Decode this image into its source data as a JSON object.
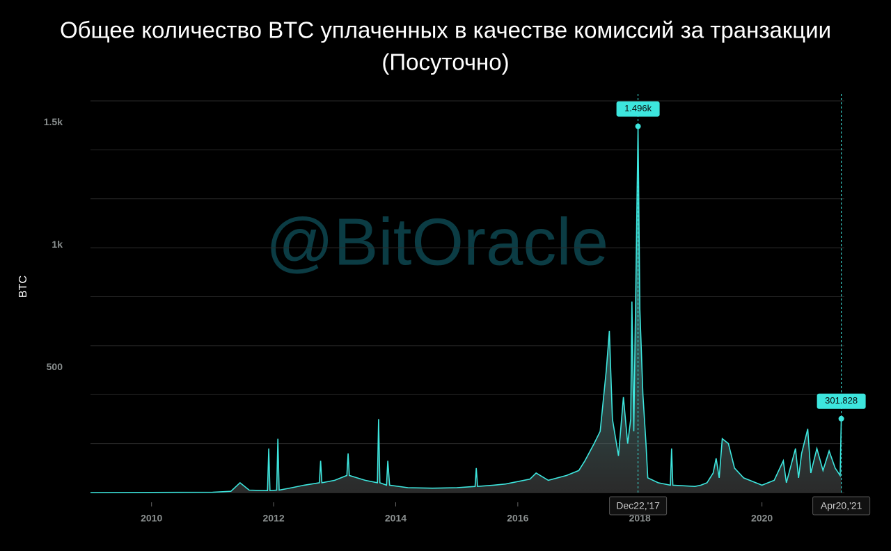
{
  "chart_data": {
    "type": "area",
    "title": "Общее количество BTC уплаченных в качестве комиссий за транзакции",
    "subtitle": "(Посуточно)",
    "watermark": "@BitOracle",
    "y_label": "BTC",
    "color": "#3de6de",
    "x": [
      2009.0,
      2010.0,
      2011.0,
      2011.3,
      2011.45,
      2011.6,
      2011.9,
      2011.92,
      2011.94,
      2012.05,
      2012.07,
      2012.09,
      2012.3,
      2012.5,
      2012.75,
      2012.77,
      2012.79,
      2013.0,
      2013.2,
      2013.22,
      2013.24,
      2013.5,
      2013.7,
      2013.72,
      2013.74,
      2013.85,
      2013.87,
      2013.9,
      2014.2,
      2014.6,
      2015.0,
      2015.3,
      2015.32,
      2015.34,
      2015.6,
      2015.8,
      2016.0,
      2016.2,
      2016.3,
      2016.5,
      2016.8,
      2017.0,
      2017.1,
      2017.25,
      2017.35,
      2017.45,
      2017.5,
      2017.55,
      2017.65,
      2017.73,
      2017.8,
      2017.85,
      2017.87,
      2017.9,
      2017.97,
      2018.0,
      2018.05,
      2018.1,
      2018.13,
      2018.3,
      2018.5,
      2018.52,
      2018.54,
      2018.9,
      2019.0,
      2019.1,
      2019.2,
      2019.25,
      2019.3,
      2019.35,
      2019.45,
      2019.55,
      2019.7,
      2019.9,
      2020.0,
      2020.2,
      2020.35,
      2020.4,
      2020.55,
      2020.6,
      2020.65,
      2020.75,
      2020.8,
      2020.9,
      2021.0,
      2021.1,
      2021.2,
      2021.28,
      2021.3
    ],
    "values": [
      0,
      0.5,
      1,
      5,
      40,
      10,
      8,
      180,
      8,
      10,
      220,
      10,
      20,
      30,
      40,
      130,
      40,
      50,
      70,
      160,
      70,
      50,
      40,
      300,
      40,
      30,
      130,
      30,
      20,
      18,
      20,
      25,
      100,
      25,
      30,
      35,
      45,
      55,
      80,
      50,
      70,
      90,
      130,
      200,
      250,
      500,
      660,
      300,
      150,
      390,
      200,
      300,
      780,
      250,
      1496,
      750,
      400,
      200,
      60,
      40,
      30,
      180,
      30,
      25,
      30,
      40,
      80,
      140,
      60,
      220,
      200,
      100,
      60,
      40,
      30,
      50,
      130,
      40,
      180,
      60,
      160,
      260,
      80,
      180,
      90,
      170,
      100,
      70,
      301.828
    ],
    "xlim": [
      2009.0,
      2021.35
    ],
    "xticks": [
      2010,
      2012,
      2014,
      2016,
      2018,
      2020
    ],
    "ylim": [
      0,
      1600
    ],
    "yticks": [
      500,
      {
        "value": 1000,
        "label": "1k"
      },
      {
        "value": 1500,
        "label": "1.5k"
      }
    ],
    "grid_values": [
      0,
      200,
      400,
      600,
      800,
      1000,
      1200,
      1400,
      1600
    ],
    "annotations": [
      {
        "x": 2017.97,
        "x_label": "Dec22,'17",
        "value": 1496,
        "label": "1.496k"
      },
      {
        "x": 2021.3,
        "x_label": "Apr20,'21",
        "value": 301.828,
        "label": "301.828"
      }
    ]
  }
}
